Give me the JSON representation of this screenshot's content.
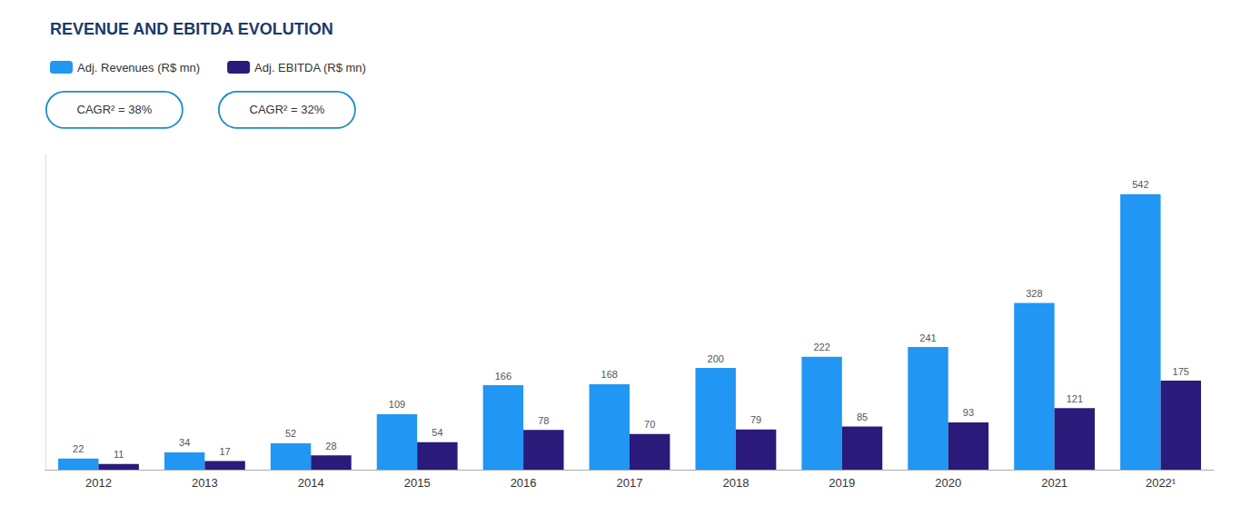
{
  "chart_data": {
    "type": "bar",
    "title": "REVENUE AND EBITDA EVOLUTION",
    "categories": [
      "2012",
      "2013",
      "2014",
      "2015",
      "2016",
      "2017",
      "2018",
      "2019",
      "2020",
      "2021",
      "2022¹"
    ],
    "series": [
      {
        "name": "Adj. Revenues (R$ mn)",
        "color": "#2196F3",
        "values": [
          22,
          34,
          52,
          109,
          166,
          168,
          200,
          222,
          241,
          328,
          542
        ]
      },
      {
        "name": "Adj. EBITDA (R$ mn)",
        "color": "#2a1a7a",
        "values": [
          11,
          17,
          28,
          54,
          78,
          70,
          79,
          85,
          93,
          121,
          175
        ]
      }
    ],
    "annotations": [
      "CAGR² = 38%",
      "CAGR² = 32%"
    ],
    "ylim": [
      0,
      620
    ],
    "grid": false,
    "legend": "upper left",
    "data_labels": true,
    "tick_labels": "x"
  }
}
